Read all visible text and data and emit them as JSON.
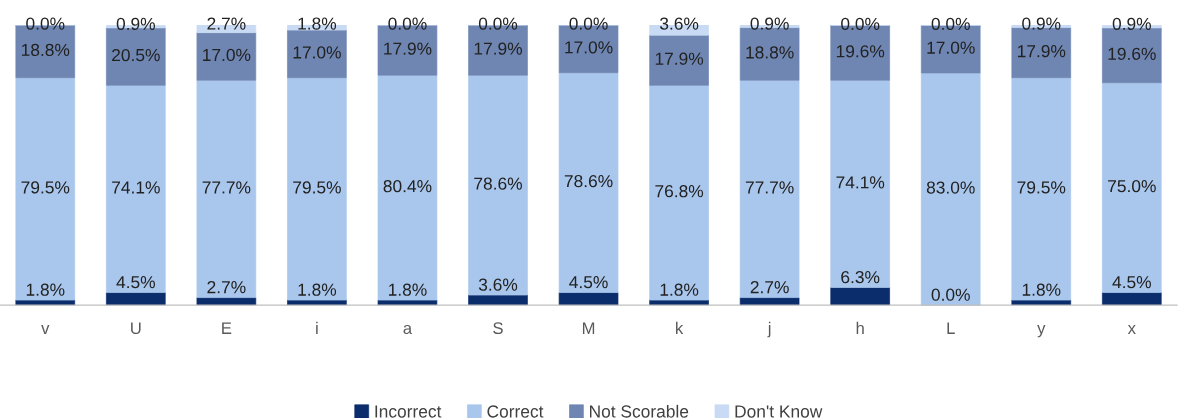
{
  "chart_data": {
    "type": "bar",
    "stacked": true,
    "legend": "bottom",
    "grid": false,
    "tick_labels": "x",
    "categories": [
      "v",
      "U",
      "E",
      "i",
      "a",
      "S",
      "M",
      "k",
      "j",
      "h",
      "L",
      "y",
      "x"
    ],
    "series": [
      {
        "name": "Incorrect",
        "color": "#0b2d6b",
        "values": [
          1.8,
          4.5,
          2.7,
          1.8,
          1.8,
          3.6,
          4.5,
          1.8,
          2.7,
          6.3,
          0.0,
          1.8,
          4.5
        ],
        "value_labels": [
          "1.8%",
          "4.5%",
          "2.7%",
          "1.8%",
          "1.8%",
          "3.6%",
          "4.5%",
          "1.8%",
          "2.7%",
          "6.3%",
          "0.0%",
          "1.8%",
          "4.5%"
        ]
      },
      {
        "name": "Correct",
        "color": "#a9c6ec",
        "values": [
          79.5,
          74.1,
          77.7,
          79.5,
          80.4,
          78.6,
          78.6,
          76.8,
          77.7,
          74.1,
          83.0,
          79.5,
          75.0
        ],
        "value_labels": [
          "79.5%",
          "74.1%",
          "77.7%",
          "79.5%",
          "80.4%",
          "78.6%",
          "78.6%",
          "76.8%",
          "77.7%",
          "74.1%",
          "83.0%",
          "79.5%",
          "75.0%"
        ]
      },
      {
        "name": "Not Scorable",
        "color": "#6f86b3",
        "values": [
          18.8,
          20.5,
          17.0,
          17.0,
          17.9,
          17.9,
          17.0,
          17.9,
          18.8,
          19.6,
          17.0,
          17.9,
          19.6
        ],
        "value_labels": [
          "18.8%",
          "20.5%",
          "17.0%",
          "17.0%",
          "17.9%",
          "17.9%",
          "17.0%",
          "17.9%",
          "18.8%",
          "19.6%",
          "17.0%",
          "17.9%",
          "19.6%"
        ]
      },
      {
        "name": "Don't Know",
        "color": "#c9dbf4",
        "values": [
          0.0,
          0.9,
          2.7,
          1.8,
          0.0,
          0.0,
          0.0,
          3.6,
          0.9,
          0.0,
          0.0,
          0.9,
          0.9
        ],
        "value_labels": [
          "0.0%",
          "0.9%",
          "2.7%",
          "1.8%",
          "0.0%",
          "0.0%",
          "0.0%",
          "3.6%",
          "0.9%",
          "0.0%",
          "0.0%",
          "0.9%",
          "0.9%"
        ]
      }
    ]
  }
}
